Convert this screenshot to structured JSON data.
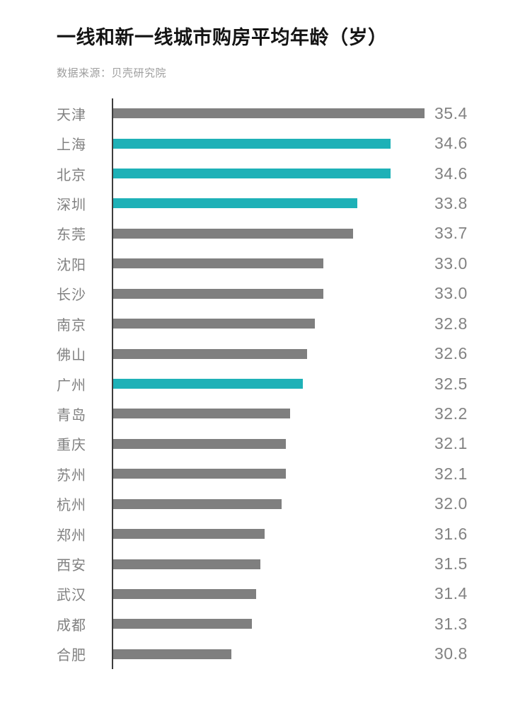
{
  "header": {
    "title": "一线和新一线城市购房平均年龄（岁）",
    "source": "数据来源：贝壳研究院"
  },
  "chart_data": {
    "type": "bar",
    "orientation": "horizontal",
    "title": "一线和新一线城市购房平均年龄（岁）",
    "source_note": "数据来源：贝壳研究院",
    "unit": "岁",
    "xlim": [
      28,
      35.4
    ],
    "grid": false,
    "legend": false,
    "value_label_position": "right",
    "colors": {
      "bar_default": "#7f7f7f",
      "bar_highlight": "#1eb1b7",
      "axis_line": "#3d3d3d",
      "label_text": "#818181",
      "value_text": "#828282"
    },
    "categories": [
      "天津",
      "上海",
      "北京",
      "深圳",
      "东莞",
      "沈阳",
      "长沙",
      "南京",
      "佛山",
      "广州",
      "青岛",
      "重庆",
      "苏州",
      "杭州",
      "郑州",
      "西安",
      "武汉",
      "成都",
      "合肥"
    ],
    "values": [
      35.4,
      34.6,
      34.6,
      33.8,
      33.7,
      33.0,
      33.0,
      32.8,
      32.6,
      32.5,
      32.2,
      32.1,
      32.1,
      32.0,
      31.6,
      31.5,
      31.4,
      31.3,
      30.8
    ],
    "rows": [
      {
        "city": "天津",
        "value": 35.4,
        "label": "35.4",
        "highlight": false
      },
      {
        "city": "上海",
        "value": 34.6,
        "label": "34.6",
        "highlight": true
      },
      {
        "city": "北京",
        "value": 34.6,
        "label": "34.6",
        "highlight": true
      },
      {
        "city": "深圳",
        "value": 33.8,
        "label": "33.8",
        "highlight": true
      },
      {
        "city": "东莞",
        "value": 33.7,
        "label": "33.7",
        "highlight": false
      },
      {
        "city": "沈阳",
        "value": 33.0,
        "label": "33.0",
        "highlight": false
      },
      {
        "city": "长沙",
        "value": 33.0,
        "label": "33.0",
        "highlight": false
      },
      {
        "city": "南京",
        "value": 32.8,
        "label": "32.8",
        "highlight": false
      },
      {
        "city": "佛山",
        "value": 32.6,
        "label": "32.6",
        "highlight": false
      },
      {
        "city": "广州",
        "value": 32.5,
        "label": "32.5",
        "highlight": true
      },
      {
        "city": "青岛",
        "value": 32.2,
        "label": "32.2",
        "highlight": false
      },
      {
        "city": "重庆",
        "value": 32.1,
        "label": "32.1",
        "highlight": false
      },
      {
        "city": "苏州",
        "value": 32.1,
        "label": "32.1",
        "highlight": false
      },
      {
        "city": "杭州",
        "value": 32.0,
        "label": "32.0",
        "highlight": false
      },
      {
        "city": "郑州",
        "value": 31.6,
        "label": "31.6",
        "highlight": false
      },
      {
        "city": "西安",
        "value": 31.5,
        "label": "31.5",
        "highlight": false
      },
      {
        "city": "武汉",
        "value": 31.4,
        "label": "31.4",
        "highlight": false
      },
      {
        "city": "成都",
        "value": 31.3,
        "label": "31.3",
        "highlight": false
      },
      {
        "city": "合肥",
        "value": 30.8,
        "label": "30.8",
        "highlight": false
      }
    ]
  }
}
